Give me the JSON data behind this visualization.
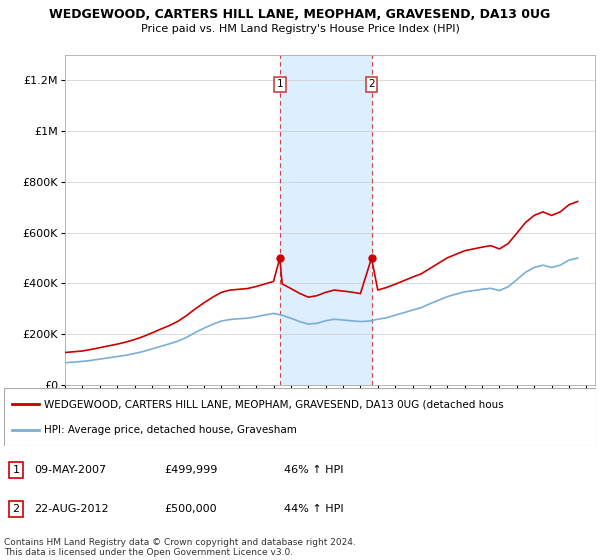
{
  "title1": "WEDGEWOOD, CARTERS HILL LANE, MEOPHAM, GRAVESEND, DA13 0UG",
  "title2": "Price paid vs. HM Land Registry's House Price Index (HPI)",
  "ylabel_ticks": [
    "£0",
    "£200K",
    "£400K",
    "£600K",
    "£800K",
    "£1M",
    "£1.2M"
  ],
  "ylim": [
    0,
    1300000
  ],
  "xlim_start": 1995.0,
  "xlim_end": 2025.5,
  "legend_line1": "WEDGEWOOD, CARTERS HILL LANE, MEOPHAM, GRAVESEND, DA13 0UG (detached hous",
  "legend_line2": "HPI: Average price, detached house, Gravesham",
  "purchase1_date": "09-MAY-2007",
  "purchase1_price": "£499,999",
  "purchase1_hpi": "46% ↑ HPI",
  "purchase1_year": 2007.36,
  "purchase1_value": 499999,
  "purchase2_date": "22-AUG-2012",
  "purchase2_price": "£500,000",
  "purchase2_hpi": "44% ↑ HPI",
  "purchase2_year": 2012.64,
  "purchase2_value": 500000,
  "line_color_red": "#cc0000",
  "line_color_blue": "#7aaed4",
  "shade_color": "#ddeeff",
  "footer": "Contains HM Land Registry data © Crown copyright and database right 2024.\nThis data is licensed under the Open Government Licence v3.0.",
  "hpi_years": [
    1995.0,
    1995.5,
    1996.0,
    1996.5,
    1997.0,
    1997.5,
    1998.0,
    1998.5,
    1999.0,
    1999.5,
    2000.0,
    2000.5,
    2001.0,
    2001.5,
    2002.0,
    2002.5,
    2003.0,
    2003.5,
    2004.0,
    2004.5,
    2005.0,
    2005.5,
    2006.0,
    2006.5,
    2007.0,
    2007.5,
    2008.0,
    2008.5,
    2009.0,
    2009.5,
    2010.0,
    2010.5,
    2011.0,
    2011.5,
    2012.0,
    2012.5,
    2013.0,
    2013.5,
    2014.0,
    2014.5,
    2015.0,
    2015.5,
    2016.0,
    2016.5,
    2017.0,
    2017.5,
    2018.0,
    2018.5,
    2019.0,
    2019.5,
    2020.0,
    2020.5,
    2021.0,
    2021.5,
    2022.0,
    2022.5,
    2023.0,
    2023.5,
    2024.0,
    2024.5
  ],
  "hpi_values": [
    88000,
    90000,
    93000,
    97000,
    102000,
    107000,
    112000,
    117000,
    124000,
    132000,
    142000,
    152000,
    162000,
    173000,
    188000,
    207000,
    224000,
    239000,
    252000,
    258000,
    261000,
    263000,
    269000,
    276000,
    282000,
    275000,
    263000,
    250000,
    240000,
    243000,
    253000,
    259000,
    256000,
    253000,
    250000,
    252000,
    259000,
    265000,
    275000,
    285000,
    295000,
    305000,
    320000,
    334000,
    348000,
    358000,
    367000,
    372000,
    377000,
    381000,
    372000,
    387000,
    415000,
    444000,
    463000,
    472000,
    463000,
    472000,
    492000,
    500000
  ],
  "red_years": [
    1995.0,
    1995.5,
    1996.0,
    1996.5,
    1997.0,
    1997.5,
    1998.0,
    1998.5,
    1999.0,
    1999.5,
    2000.0,
    2000.5,
    2001.0,
    2001.5,
    2002.0,
    2002.5,
    2003.0,
    2003.5,
    2004.0,
    2004.5,
    2005.0,
    2005.5,
    2006.0,
    2006.5,
    2007.0,
    2007.36,
    2007.5,
    2008.0,
    2008.5,
    2009.0,
    2009.5,
    2010.0,
    2010.5,
    2011.0,
    2011.5,
    2012.0,
    2012.64,
    2013.0,
    2013.5,
    2014.0,
    2014.5,
    2015.0,
    2015.5,
    2016.0,
    2016.5,
    2017.0,
    2017.5,
    2018.0,
    2018.5,
    2019.0,
    2019.5,
    2020.0,
    2020.5,
    2021.0,
    2021.5,
    2022.0,
    2022.5,
    2023.0,
    2023.5,
    2024.0,
    2024.5
  ],
  "red_values": [
    128000,
    131000,
    134000,
    140000,
    147000,
    154000,
    161000,
    169000,
    179000,
    191000,
    205000,
    220000,
    234000,
    251000,
    274000,
    300000,
    324000,
    346000,
    365000,
    374000,
    377000,
    380000,
    388000,
    398000,
    408000,
    499999,
    398000,
    380000,
    361000,
    346000,
    352000,
    365000,
    374000,
    370000,
    366000,
    360000,
    500000,
    374000,
    384000,
    397000,
    411000,
    425000,
    438000,
    459000,
    480000,
    501000,
    515000,
    529000,
    536000,
    543000,
    549000,
    536000,
    557000,
    598000,
    640000,
    668000,
    682000,
    668000,
    682000,
    710000,
    723000
  ]
}
